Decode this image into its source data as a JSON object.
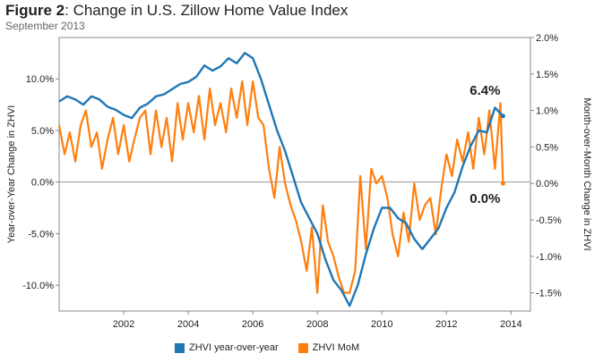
{
  "title_bold": "Figure 2",
  "title_rest": ": Change in U.S. Zillow Home Value Index",
  "subtitle": "September 2013",
  "colors": {
    "yoy": "#1f77b4",
    "mom": "#ff7f0e",
    "grid": "#d0d0d0",
    "axis": "#888888"
  },
  "chart_data": {
    "type": "line",
    "title": "Figure 2: Change in U.S. Zillow Home Value Index",
    "subtitle": "September 2013",
    "xlabel": "",
    "ylabel_left": "Year-over-Year Change in ZHVI",
    "ylabel_right": "Month-over-Month Change in ZHVI",
    "xlim": [
      2000.0,
      2014.6
    ],
    "ylim_left": [
      -12.5,
      14.0
    ],
    "ylim_right": [
      -1.75,
      2.0
    ],
    "x_ticks": [
      2002,
      2004,
      2006,
      2008,
      2010,
      2012,
      2014
    ],
    "y_ticks_left": [
      "10.0%",
      "5.0%",
      "0.0%",
      "-5.0%",
      "-10.0%"
    ],
    "y_tick_values_left": [
      10,
      5,
      0,
      -5,
      -10
    ],
    "y_ticks_right": [
      "2.0%",
      "1.5%",
      "1.0%",
      "0.5%",
      "0.0%",
      "-0.5%",
      "-1.0%",
      "-1.5%"
    ],
    "y_tick_values_right": [
      2.0,
      1.5,
      1.0,
      0.5,
      0.0,
      -0.5,
      -1.0,
      -1.5
    ],
    "legend_position": "bottom",
    "grid": "horizontal zero line",
    "annotations": [
      {
        "text": "6.4%",
        "series": "ZHVI year-over-year"
      },
      {
        "text": "0.0%",
        "series": "ZHVI MoM"
      }
    ],
    "series": [
      {
        "name": "ZHVI year-over-year",
        "axis": "left",
        "x": [
          2000.0,
          2000.25,
          2000.5,
          2000.75,
          2001.0,
          2001.25,
          2001.5,
          2001.75,
          2002.0,
          2002.25,
          2002.5,
          2002.75,
          2003.0,
          2003.25,
          2003.5,
          2003.75,
          2004.0,
          2004.25,
          2004.5,
          2004.75,
          2005.0,
          2005.25,
          2005.5,
          2005.75,
          2006.0,
          2006.25,
          2006.5,
          2006.75,
          2007.0,
          2007.25,
          2007.5,
          2007.75,
          2008.0,
          2008.25,
          2008.5,
          2008.75,
          2009.0,
          2009.25,
          2009.5,
          2009.75,
          2010.0,
          2010.25,
          2010.5,
          2010.75,
          2011.0,
          2011.25,
          2011.5,
          2011.75,
          2012.0,
          2012.25,
          2012.5,
          2012.75,
          2013.0,
          2013.25,
          2013.5,
          2013.75
        ],
        "y": [
          7.8,
          8.3,
          8.0,
          7.5,
          8.3,
          8.0,
          7.3,
          7.0,
          6.5,
          6.2,
          7.2,
          7.6,
          8.3,
          8.5,
          9.0,
          9.5,
          9.7,
          10.2,
          11.3,
          10.8,
          11.2,
          12.0,
          11.5,
          12.5,
          12.0,
          10.0,
          7.5,
          5.0,
          3.0,
          0.5,
          -2.0,
          -3.5,
          -5.0,
          -7.5,
          -9.5,
          -10.5,
          -12.0,
          -10.0,
          -7.0,
          -4.5,
          -2.5,
          -2.5,
          -3.5,
          -4.0,
          -5.5,
          -6.5,
          -5.5,
          -4.5,
          -2.5,
          -1.0,
          1.5,
          3.5,
          5.0,
          4.8,
          7.2,
          6.4
        ]
      },
      {
        "name": "ZHVI MoM",
        "axis": "right",
        "x": [
          2000.0,
          2000.17,
          2000.33,
          2000.5,
          2000.67,
          2000.83,
          2001.0,
          2001.17,
          2001.33,
          2001.5,
          2001.67,
          2001.83,
          2002.0,
          2002.17,
          2002.33,
          2002.5,
          2002.67,
          2002.83,
          2003.0,
          2003.17,
          2003.33,
          2003.5,
          2003.67,
          2003.83,
          2004.0,
          2004.17,
          2004.33,
          2004.5,
          2004.67,
          2004.83,
          2005.0,
          2005.17,
          2005.33,
          2005.5,
          2005.67,
          2005.83,
          2006.0,
          2006.17,
          2006.33,
          2006.5,
          2006.67,
          2006.83,
          2007.0,
          2007.17,
          2007.33,
          2007.5,
          2007.67,
          2007.83,
          2008.0,
          2008.17,
          2008.33,
          2008.5,
          2008.67,
          2008.83,
          2009.0,
          2009.17,
          2009.33,
          2009.5,
          2009.67,
          2009.83,
          2010.0,
          2010.17,
          2010.33,
          2010.5,
          2010.67,
          2010.83,
          2011.0,
          2011.17,
          2011.33,
          2011.5,
          2011.67,
          2011.83,
          2012.0,
          2012.17,
          2012.33,
          2012.5,
          2012.67,
          2012.83,
          2013.0,
          2013.17,
          2013.33,
          2013.5,
          2013.67,
          2013.75
        ],
        "y": [
          0.8,
          0.4,
          0.7,
          0.3,
          0.8,
          1.0,
          0.5,
          0.7,
          0.2,
          0.6,
          0.9,
          0.4,
          0.8,
          0.3,
          0.6,
          0.9,
          1.0,
          0.4,
          1.0,
          0.5,
          0.9,
          0.3,
          1.1,
          0.6,
          1.1,
          0.7,
          1.2,
          0.6,
          1.3,
          0.8,
          1.1,
          0.7,
          1.3,
          0.9,
          1.4,
          0.8,
          1.4,
          0.9,
          0.8,
          0.2,
          -0.2,
          0.5,
          0.0,
          -0.3,
          -0.5,
          -0.8,
          -1.2,
          -0.6,
          -1.5,
          -0.3,
          -0.8,
          -1.0,
          -1.3,
          -1.5,
          -1.5,
          -1.2,
          0.1,
          -0.9,
          0.2,
          0.0,
          0.1,
          -0.2,
          -0.7,
          -1.0,
          -0.4,
          -0.8,
          0.0,
          -0.5,
          -0.3,
          -0.2,
          -0.7,
          -0.1,
          0.4,
          0.1,
          0.6,
          0.3,
          0.7,
          0.2,
          0.9,
          0.4,
          1.0,
          0.2,
          1.1,
          0.0
        ]
      }
    ]
  }
}
